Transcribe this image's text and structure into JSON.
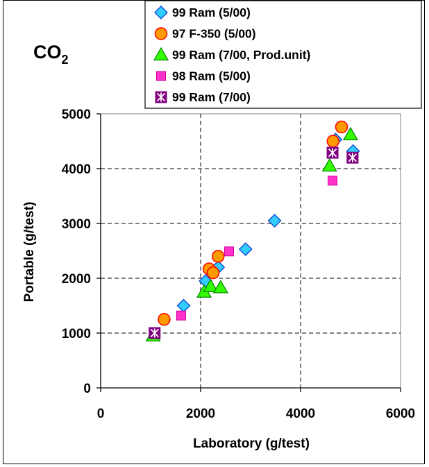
{
  "chart_data": {
    "type": "scatter",
    "title": "CO",
    "title_subscript": "2",
    "xlabel": "Laboratory (g/test)",
    "ylabel": "Portable (g/test)",
    "xlim": [
      0,
      6000
    ],
    "ylim": [
      0,
      5000
    ],
    "xticks": [
      0,
      2000,
      4000,
      6000
    ],
    "yticks": [
      0,
      1000,
      2000,
      3000,
      4000,
      5000
    ],
    "x_tick_labels": [
      "0",
      "2000",
      "4000",
      "6000"
    ],
    "y_tick_labels": [
      "0",
      "1000",
      "2000",
      "3000",
      "4000",
      "5000"
    ],
    "grid": "dashed",
    "legend_position": "top-right",
    "series": [
      {
        "name": "99 Ram (5/00)",
        "marker": "diamond",
        "color": "#33CCFF",
        "edge": "#0033CC",
        "points": [
          [
            1660,
            1500
          ],
          [
            2100,
            1950
          ],
          [
            2350,
            2200
          ],
          [
            2900,
            2530
          ],
          [
            3480,
            3050
          ],
          [
            4700,
            4530
          ],
          [
            5050,
            4320
          ]
        ]
      },
      {
        "name": "97 F-350 (5/00)",
        "marker": "circle",
        "color": "#FF9900",
        "edge": "#FF0000",
        "points": [
          [
            1270,
            1250
          ],
          [
            2170,
            2170
          ],
          [
            2250,
            2100
          ],
          [
            2350,
            2400
          ],
          [
            4650,
            4500
          ],
          [
            4820,
            4760
          ]
        ]
      },
      {
        "name": "99 Ram (7/00, Prod.unit)",
        "marker": "triangle",
        "color": "#33FF00",
        "edge": "#008000",
        "points": [
          [
            1050,
            950
          ],
          [
            2070,
            1750
          ],
          [
            2200,
            1850
          ],
          [
            2400,
            1830
          ],
          [
            4580,
            4050
          ],
          [
            5000,
            4620
          ]
        ]
      },
      {
        "name": "98 Ram (5/00)",
        "marker": "square",
        "color": "#FF33CC",
        "edge": "#CC0099",
        "points": [
          [
            1610,
            1320
          ],
          [
            2570,
            2490
          ],
          [
            4640,
            3780
          ]
        ]
      },
      {
        "name": "99 Ram (7/00)",
        "marker": "asterisk-square",
        "color": "#800080",
        "edge": "#ffffff",
        "points": [
          [
            1080,
            1000
          ],
          [
            4640,
            4290
          ],
          [
            5040,
            4200
          ]
        ]
      }
    ]
  }
}
